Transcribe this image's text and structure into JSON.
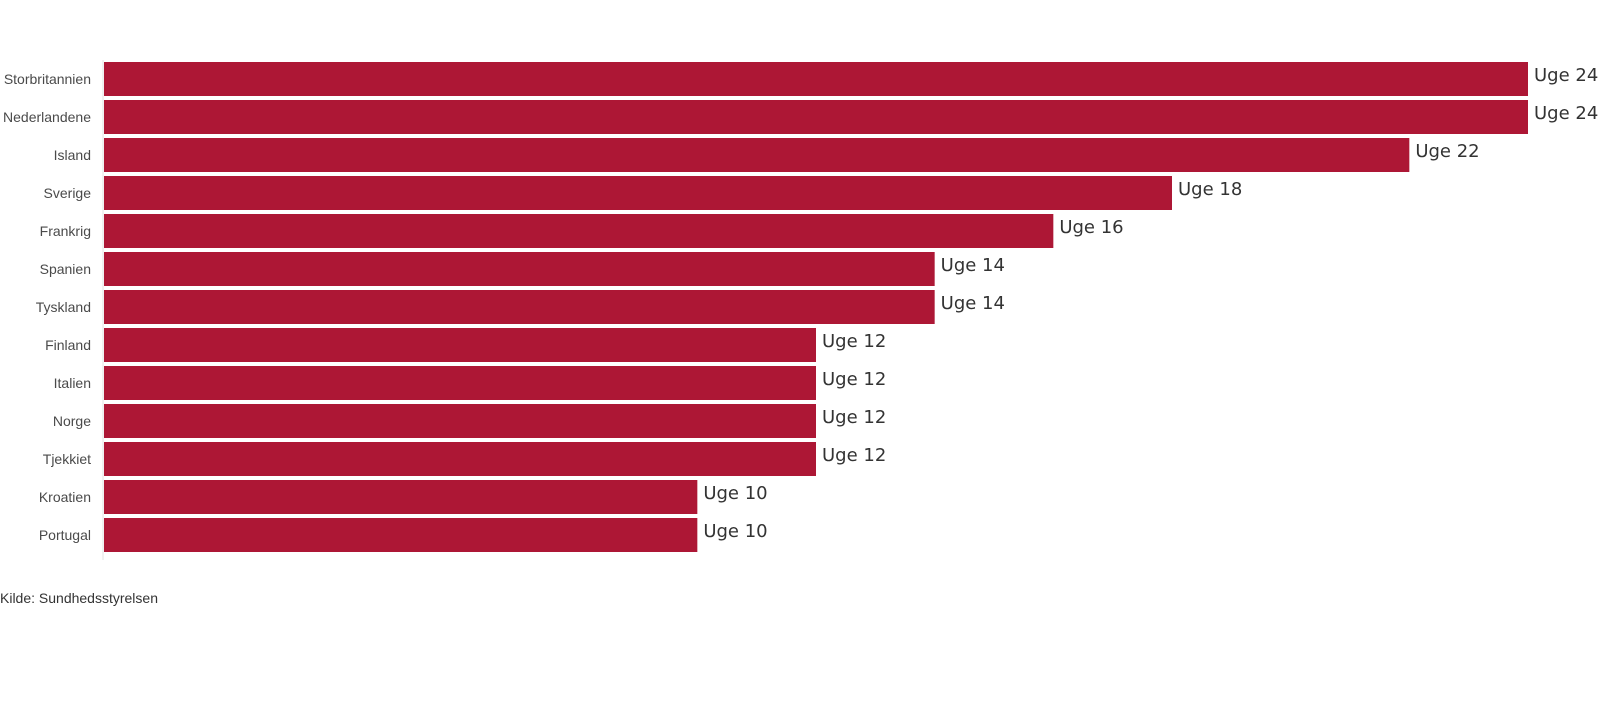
{
  "chart_data": {
    "type": "bar",
    "orientation": "horizontal",
    "categories": [
      "Storbritannien",
      "Nederlandene",
      "Island",
      "Sverige",
      "Frankrig",
      "Spanien",
      "Tyskland",
      "Finland",
      "Italien",
      "Norge",
      "Tjekkiet",
      "Kroatien",
      "Portugal"
    ],
    "values": [
      24,
      24,
      22,
      18,
      16,
      14,
      14,
      12,
      12,
      12,
      12,
      10,
      10
    ],
    "value_prefix": "Uge ",
    "xlim": [
      0,
      24
    ],
    "bar_color": "#ad1735",
    "grid": false
  },
  "source": "Kilde: Sundhedsstyrelsen"
}
